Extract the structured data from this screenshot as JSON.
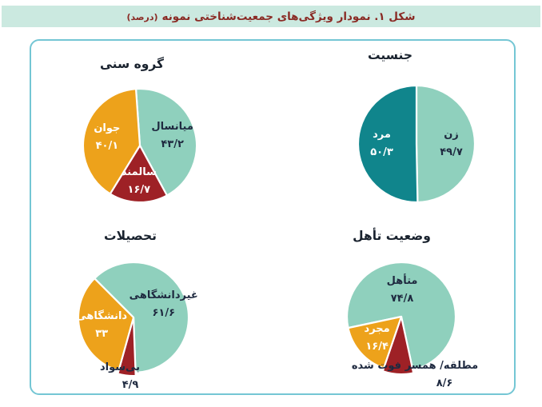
{
  "header": {
    "title": "شکل ۱. نمودار ویژگی‌های جمعیت‌شناختی نمونه",
    "unit": "(درصد)"
  },
  "colors": {
    "teal_light": "#8fd0bd",
    "teal_dark": "#10858c",
    "orange": "#eda21b",
    "red": "#9e2126",
    "header_bg": "#cbe9e0",
    "header_text": "#8a2a24",
    "panel_border": "#74c6d4",
    "title_text": "#19222e",
    "label_dark": "#1f2a40",
    "label_light": "#ffffff"
  },
  "chart_data": [
    {
      "id": "age-group",
      "type": "pie",
      "title": "گروه سنی",
      "rotation": -4,
      "slices": [
        {
          "label": "میانسال",
          "value": 43.2,
          "display": "۴۳/۲",
          "color": "#8fd0bd",
          "text_color": "#1f2a40",
          "label_position": "inside"
        },
        {
          "label": "سالمند",
          "value": 16.7,
          "display": "۱۶/۷",
          "color": "#9e2126",
          "text_color": "#ffffff",
          "label_position": "inside",
          "label_dy": 3
        },
        {
          "label": "جوان",
          "value": 40.1,
          "display": "۴۰/۱",
          "color": "#eda21b",
          "text_color": "#ffffff",
          "label_position": "inside"
        }
      ]
    },
    {
      "id": "gender",
      "type": "pie",
      "title": "جنسیت",
      "rotation": 0,
      "slices": [
        {
          "label": "زن",
          "value": 49.7,
          "display": "۴۹/۷",
          "color": "#8fd0bd",
          "text_color": "#1f2a40",
          "label_position": "inside"
        },
        {
          "label": "مرد",
          "value": 50.3,
          "display": "۵۰/۳",
          "color": "#10858c",
          "text_color": "#ffffff",
          "label_position": "inside"
        }
      ]
    },
    {
      "id": "education",
      "type": "pie",
      "title": "تحصیلات",
      "rotation": -45,
      "slices": [
        {
          "label": "غیردانشگاهی",
          "value": 61.6,
          "display": "۶۱/۶",
          "color": "#8fd0bd",
          "text_color": "#1f2a40",
          "label_position": "inside"
        },
        {
          "label": "بی‌سواد",
          "value": 4.9,
          "display": "۴/۹",
          "color": "#9e2126",
          "text_color": "#1f2a40",
          "label_position": "below",
          "r_scale": 1.06,
          "label_dx": -17,
          "value_dx": -4
        },
        {
          "label": "دانشگاهی",
          "value": 33,
          "display": "۳۳",
          "color": "#eda21b",
          "text_color": "#ffffff",
          "label_position": "inside"
        }
      ]
    },
    {
      "id": "marital-status",
      "type": "pie",
      "title": "وضعیت تأهل",
      "rotation": -102,
      "slices": [
        {
          "label": "متأهل",
          "value": 74.8,
          "display": "۷۴/۸",
          "color": "#8fd0bd",
          "text_color": "#1f2a40",
          "label_position": "inside",
          "label_r": 0.5,
          "label_dx": -18,
          "label_dy": -4
        },
        {
          "label": "مطلقه/ همسر فوت شده",
          "value": 8.6,
          "display": "۸/۶",
          "color": "#9e2126",
          "text_color": "#1f2a40",
          "label_position": "below",
          "r_scale": 1.06,
          "label_dx": 17,
          "value_dx": 54
        },
        {
          "label": "مجرد",
          "value": 16.4,
          "display": "۱۶/۴",
          "color": "#eda21b",
          "text_color": "#ffffff",
          "label_position": "inside"
        }
      ]
    }
  ]
}
